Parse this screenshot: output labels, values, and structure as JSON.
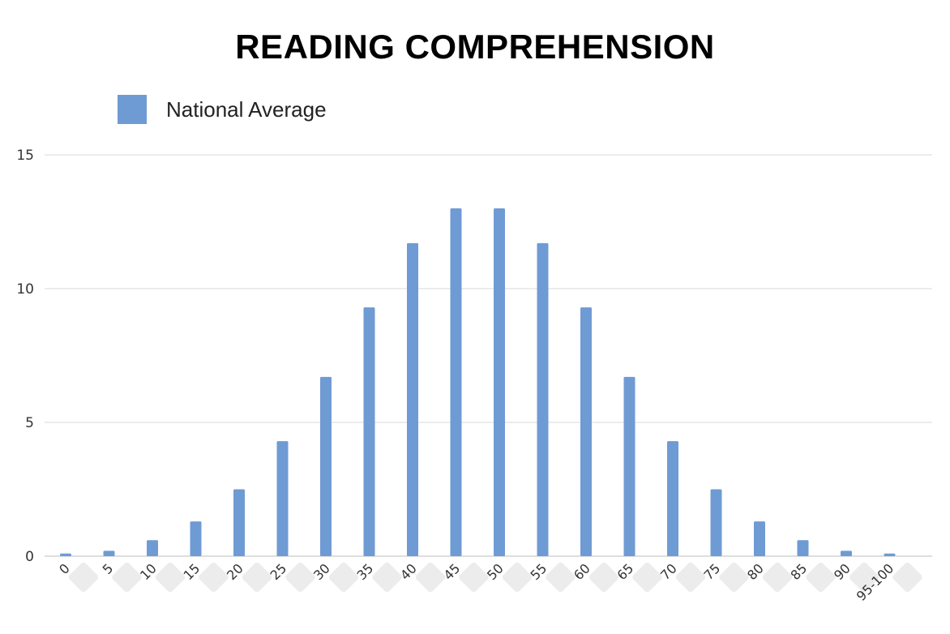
{
  "chart_data": {
    "type": "bar",
    "title": "READING COMPREHENSION",
    "xlabel": "",
    "ylabel": "",
    "categories": [
      "0",
      "5",
      "10",
      "15",
      "20",
      "25",
      "30",
      "35",
      "40",
      "45",
      "50",
      "55",
      "60",
      "65",
      "70",
      "75",
      "80",
      "85",
      "90",
      "95-100"
    ],
    "series": [
      {
        "name": "National Average",
        "values": [
          0.1,
          0.2,
          0.6,
          1.3,
          2.5,
          4.3,
          6.7,
          9.3,
          11.7,
          13.0,
          13.0,
          11.7,
          9.3,
          6.7,
          4.3,
          2.5,
          1.3,
          0.6,
          0.2,
          0.1
        ]
      }
    ],
    "ylim": [
      0,
      15
    ],
    "yticks": [
      "0",
      "5",
      "10",
      "15"
    ],
    "grid": true,
    "legend_position": "top-left",
    "colors": {
      "bar": "#6f9bd4",
      "grid": "#d9d9d9"
    }
  }
}
